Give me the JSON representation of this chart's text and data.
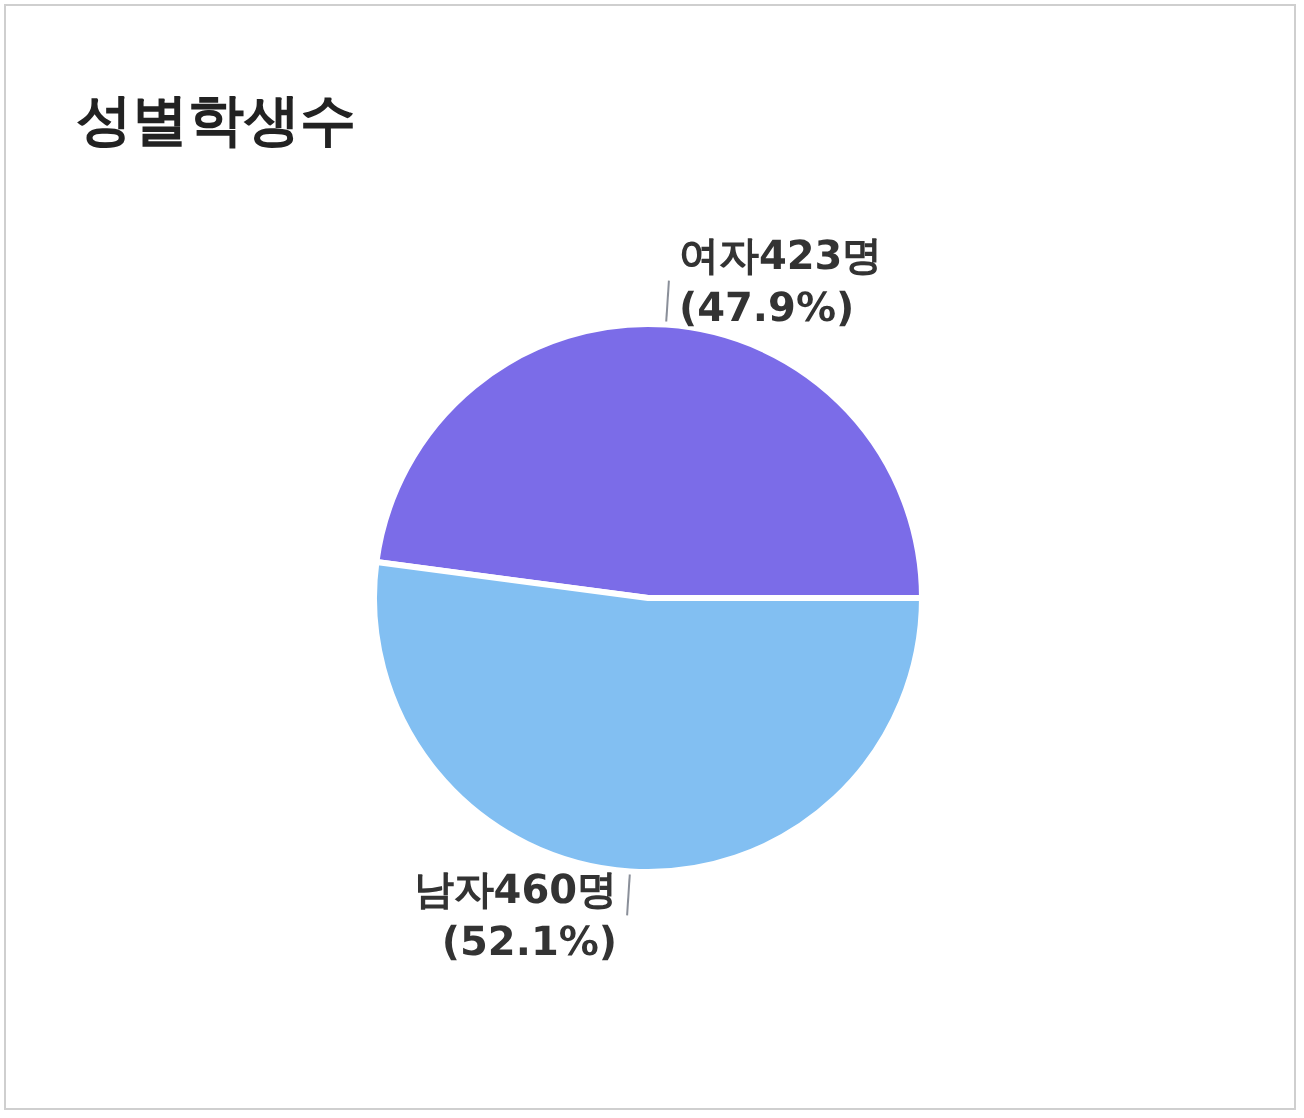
{
  "chart_data": {
    "type": "pie",
    "title": "성별학생수",
    "categories": [
      "여자",
      "남자"
    ],
    "values": [
      423,
      460
    ],
    "value_labels": [
      "423명\n(47.9%)",
      "460명\n(52.1%)"
    ],
    "colors": [
      "#7b6ce8",
      "#82bff2"
    ],
    "legend": false
  }
}
